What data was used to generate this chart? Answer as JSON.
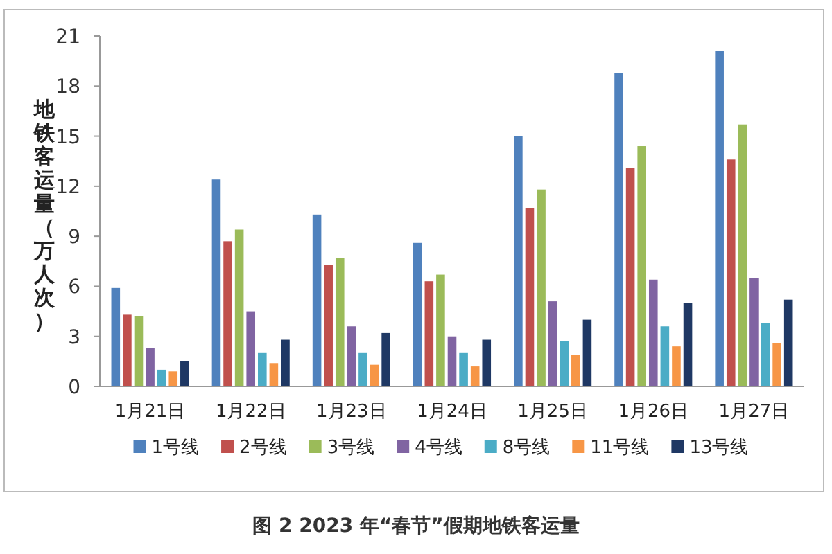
{
  "chart_data": {
    "type": "bar",
    "title": "图 2 2023 年“春节”假期地铁客运量",
    "ylabel": "地铁客运量（万人次）",
    "categories": [
      "1月21日",
      "1月22日",
      "1月23日",
      "1月24日",
      "1月25日",
      "1月26日",
      "1月27日"
    ],
    "series": [
      {
        "name": "1号线",
        "color": "#4f81bd",
        "values": [
          5.9,
          12.4,
          10.3,
          8.6,
          15.0,
          18.8,
          20.1
        ]
      },
      {
        "name": "2号线",
        "color": "#c0504d",
        "values": [
          4.3,
          8.7,
          7.3,
          6.3,
          10.7,
          13.1,
          13.6
        ]
      },
      {
        "name": "3号线",
        "color": "#9bbb59",
        "values": [
          4.2,
          9.4,
          7.7,
          6.7,
          11.8,
          14.4,
          15.7
        ]
      },
      {
        "name": "4号线",
        "color": "#8064a2",
        "values": [
          2.3,
          4.5,
          3.6,
          3.0,
          5.1,
          6.4,
          6.5
        ]
      },
      {
        "name": "8号线",
        "color": "#4bacc6",
        "values": [
          1.0,
          2.0,
          2.0,
          2.0,
          2.7,
          3.6,
          3.8
        ]
      },
      {
        "name": "11号线",
        "color": "#f79646",
        "values": [
          0.9,
          1.4,
          1.3,
          1.2,
          1.9,
          2.4,
          2.6
        ]
      },
      {
        "name": "13号线",
        "color": "#1f3864",
        "values": [
          1.5,
          2.8,
          3.2,
          2.8,
          4.0,
          5.0,
          5.2
        ]
      }
    ],
    "ylim": [
      0,
      21
    ],
    "yticks": [
      0,
      3,
      6,
      9,
      12,
      15,
      18,
      21
    ],
    "grid": false,
    "legend": "bottom"
  }
}
